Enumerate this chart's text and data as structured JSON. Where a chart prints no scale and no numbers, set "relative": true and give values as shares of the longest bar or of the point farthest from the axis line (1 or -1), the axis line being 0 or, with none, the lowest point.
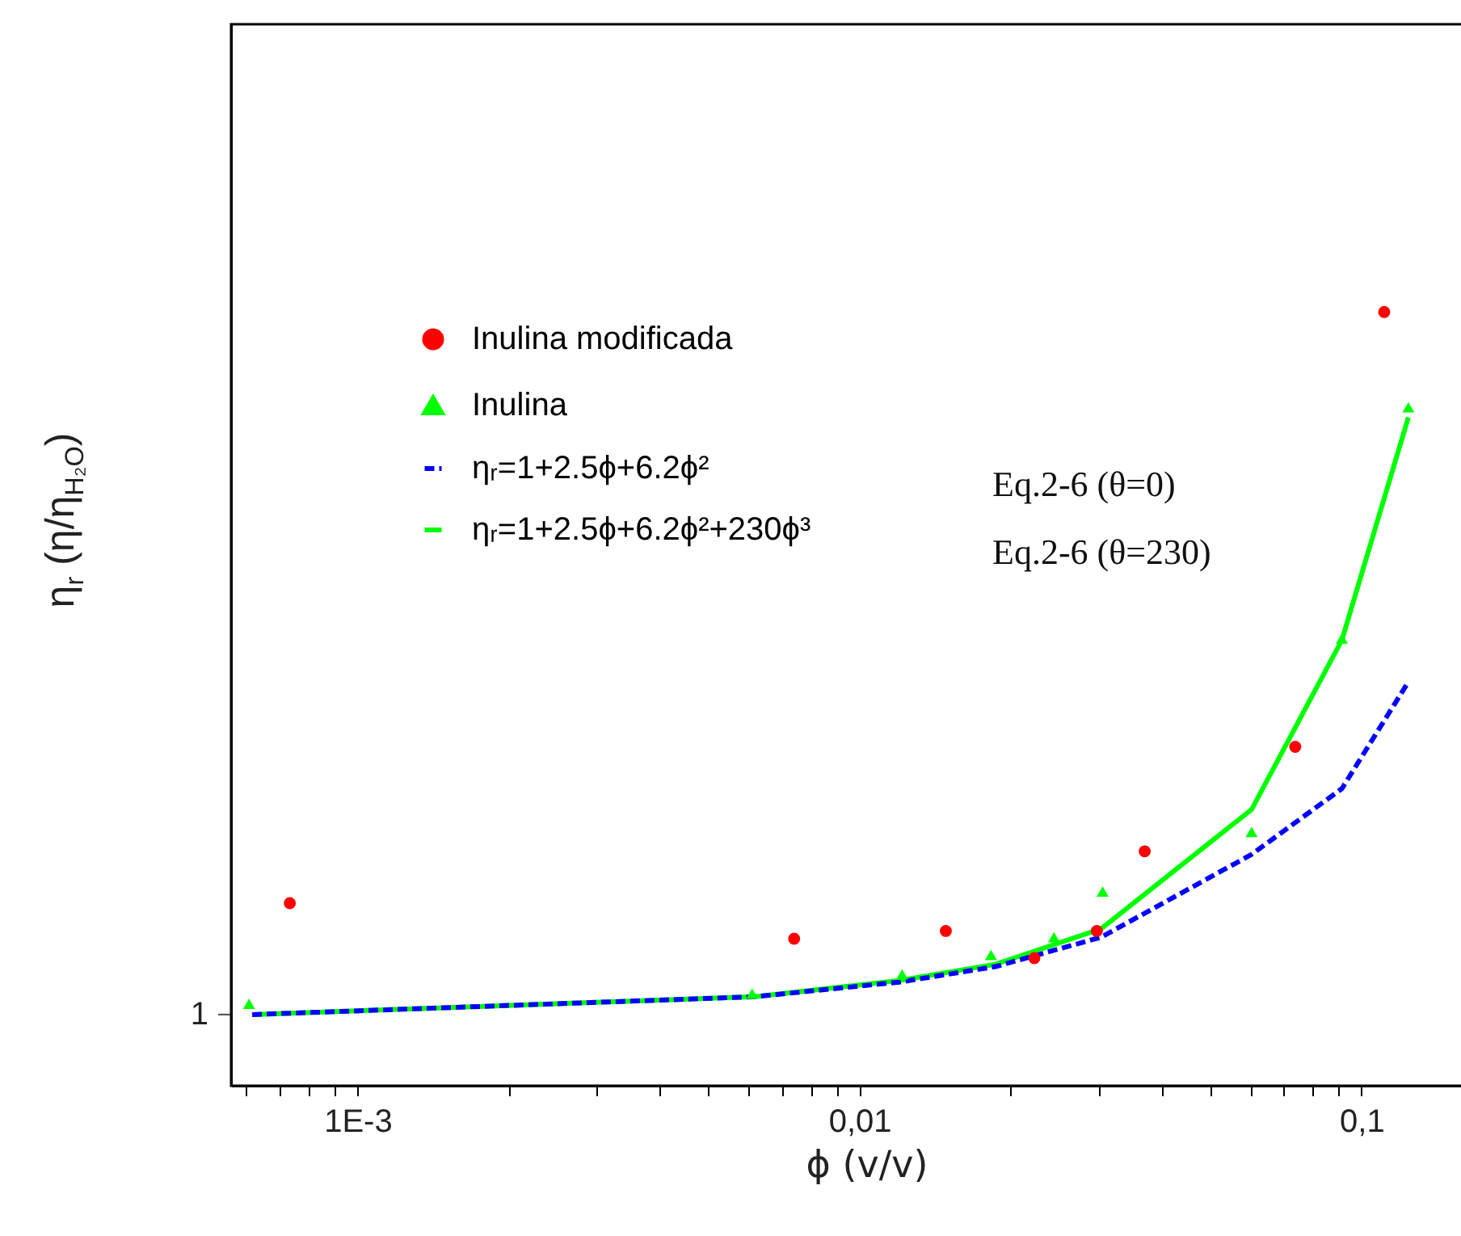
{
  "chart_data": {
    "type": "scatter",
    "xlabel": "ϕ (v/v)",
    "ylabel": "η$_{r}$ (η/η$_{H₂O}$)",
    "log": "x",
    "relative": true,
    "grid": false,
    "legend": "top left",
    "xlim": [
      0.00056,
      0.19
    ],
    "xticks": [
      {
        "value": 0.0006,
        "label": null
      },
      {
        "value": 0.0007,
        "label": null
      },
      {
        "value": 0.0008,
        "label": null
      },
      {
        "value": 0.0009,
        "label": null
      },
      {
        "value": 0.001,
        "label": "1E-3"
      },
      {
        "value": 0.002,
        "label": null
      },
      {
        "value": 0.003,
        "label": null
      },
      {
        "value": 0.004,
        "label": null
      },
      {
        "value": 0.005,
        "label": null
      },
      {
        "value": 0.006,
        "label": null
      },
      {
        "value": 0.007,
        "label": null
      },
      {
        "value": 0.008,
        "label": null
      },
      {
        "value": 0.009,
        "label": null
      },
      {
        "value": 0.01,
        "label": "0,01"
      },
      {
        "value": 0.02,
        "label": null
      },
      {
        "value": 0.03,
        "label": null
      },
      {
        "value": 0.04,
        "label": null
      },
      {
        "value": 0.05,
        "label": null
      },
      {
        "value": 0.06,
        "label": null
      },
      {
        "value": 0.07,
        "label": null
      },
      {
        "value": 0.08,
        "label": null
      },
      {
        "value": 0.09,
        "label": null
      },
      {
        "value": 0.1,
        "label": "0,1"
      }
    ],
    "annotations": [
      "Eq.2-6 (θ=0)",
      "Eq.2-6 (θ=230)",
      "1"
    ],
    "series": [
      {
        "name": "Inulina modificada",
        "type": "scatter",
        "marker": "circle",
        "color": "#ff0000",
        "x": [
          0.000733,
          0.00741,
          0.01486,
          0.0223,
          0.0297,
          0.037,
          0.0738,
          0.111
        ],
        "values": [
          0.236,
          0.19,
          0.2,
          0.165,
          0.2,
          0.303,
          0.438,
          1
        ]
      },
      {
        "name": "Inulina",
        "type": "scatter",
        "marker": "triangle",
        "color": "#00ff00",
        "x": [
          0.000608,
          0.00611,
          0.01216,
          0.01828,
          0.0244,
          0.0305,
          0.0604,
          0.0914,
          0.124
        ],
        "values": [
          0.106,
          0.119,
          0.144,
          0.169,
          0.192,
          0.251,
          0.328,
          0.578,
          0.877
        ]
      },
      {
        "name": "ηᵣ=1+2.5ϕ+6.2ϕ²",
        "type": "line",
        "marker": "none",
        "line_style": "dashed",
        "color": "#0000ff",
        "x": [
          0.000617,
          0.00616,
          0.01202,
          0.01866,
          0.0303,
          0.0604,
          0.0914,
          0.124
        ],
        "values": [
          0.092,
          0.115,
          0.134,
          0.154,
          0.192,
          0.299,
          0.384,
          0.522
        ]
      },
      {
        "name": "ηᵣ=1+2.5ϕ+6.2ϕ²+230ϕ³",
        "type": "line",
        "marker": "none",
        "line_style": "solid",
        "color": "#00ff00",
        "x": [
          0.000617,
          0.00616,
          0.01202,
          0.01866,
          0.0303,
          0.0604,
          0.0914,
          0.124
        ],
        "values": [
          0.092,
          0.115,
          0.136,
          0.157,
          0.203,
          0.357,
          0.576,
          0.864
        ]
      }
    ]
  }
}
